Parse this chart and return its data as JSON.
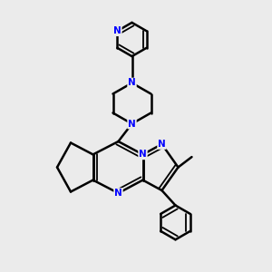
{
  "background_color": "#ebebeb",
  "bond_color": "#000000",
  "nitrogen_color": "#0000ff",
  "bond_width": 1.8,
  "figsize": [
    3.0,
    3.0
  ],
  "dpi": 100,
  "xlim": [
    0,
    10
  ],
  "ylim": [
    0,
    10
  ]
}
